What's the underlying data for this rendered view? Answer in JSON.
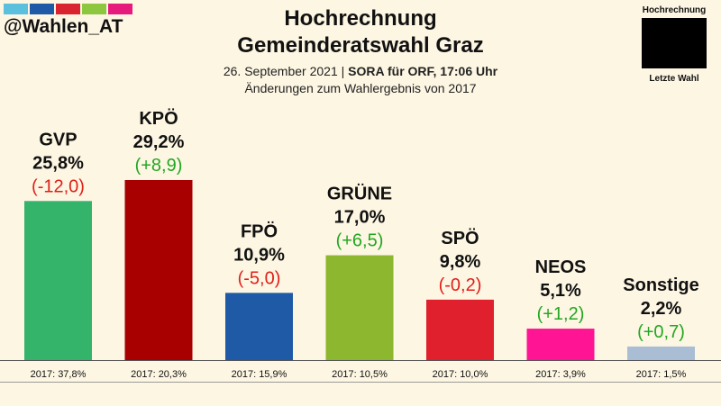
{
  "header": {
    "handle": "@Wahlen_AT",
    "title_line1": "Hochrechnung",
    "title_line2": "Gemeinderatswahl Graz",
    "subtitle_date": "26. September 2021",
    "subtitle_source": "SORA für ORF, 17:06 Uhr",
    "subtitle_note": "Änderungen zum Wahlergebnis von 2017",
    "brand_colors": [
      "#5bc0de",
      "#1f5aa6",
      "#d9232e",
      "#8dc63f",
      "#e6197d"
    ]
  },
  "legend": {
    "top_label": "Hochrechnung",
    "bottom_label": "Letzte Wahl"
  },
  "chart_data": {
    "type": "bar",
    "categories": [
      "GVP",
      "KPÖ",
      "FPÖ",
      "GRÜNE",
      "SPÖ",
      "NEOS",
      "Sonstige"
    ],
    "values": [
      25.8,
      29.2,
      10.9,
      17.0,
      9.8,
      5.1,
      2.2
    ],
    "value_labels": [
      "25,8%",
      "29,2%",
      "10,9%",
      "17,0%",
      "9,8%",
      "5,1%",
      "2,2%"
    ],
    "changes": [
      -12.0,
      8.9,
      -5.0,
      6.5,
      -0.2,
      1.2,
      0.7
    ],
    "change_labels": [
      "(-12,0)",
      "(+8,9)",
      "(-5,0)",
      "(+6,5)",
      "(-0,2)",
      "(+1,2)",
      "(+0,7)"
    ],
    "previous_labels": [
      "2017: 37,8%",
      "2017: 20,3%",
      "2017: 15,9%",
      "2017: 10,5%",
      "2017: 10,0%",
      "2017: 3,9%",
      "2017: 1,5%"
    ],
    "previous_values": [
      37.8,
      20.3,
      15.9,
      10.5,
      10.0,
      3.9,
      1.5
    ],
    "colors": [
      "#34b36b",
      "#a80000",
      "#1f5aa6",
      "#8db72e",
      "#e0202c",
      "#ff1493",
      "#a9bdd4"
    ],
    "positive_color": "#22a722",
    "negative_color": "#e0201a",
    "ylim": [
      0,
      34
    ],
    "grid": false
  }
}
